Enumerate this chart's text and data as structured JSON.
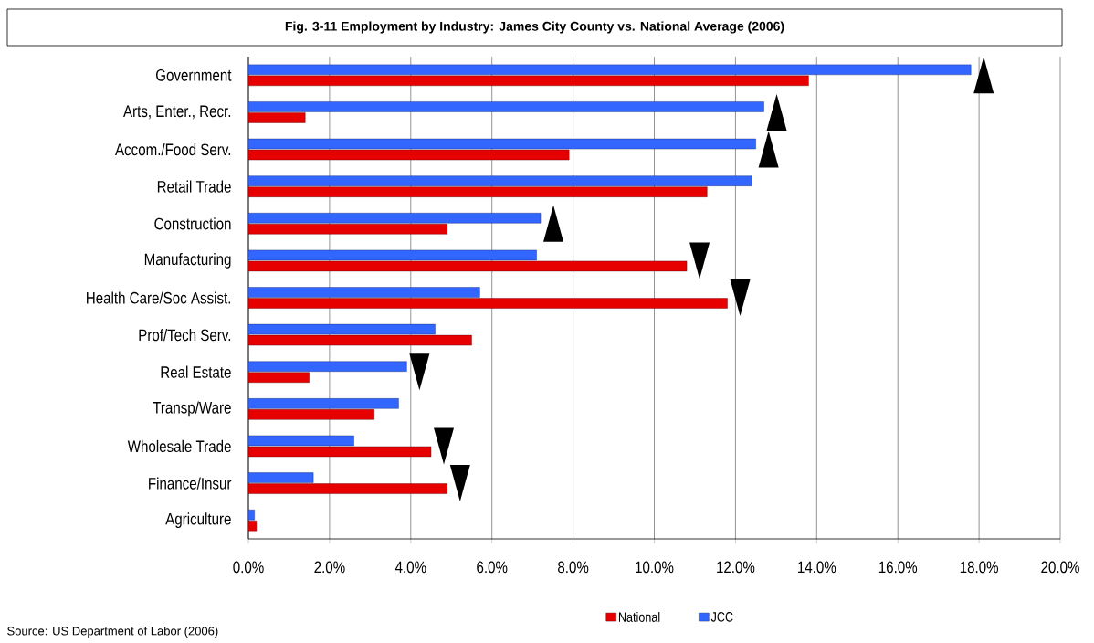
{
  "chart_data": {
    "type": "bar",
    "orientation": "horizontal",
    "title": "Fig. 3-11 Employment by Industry: James City County vs. National Average (2006)",
    "categories": [
      "Government",
      "Arts, Enter., Recr.",
      "Accom./Food Serv.",
      "Retail Trade",
      "Construction",
      "Manufacturing",
      "Health Care/Soc Assist.",
      "Prof/Tech Serv.",
      "Real Estate",
      "Transp/Ware",
      "Wholesale Trade",
      "Finance/Insur",
      "Agriculture"
    ],
    "series": [
      {
        "name": "National",
        "color": "#e60000",
        "values": [
          13.8,
          1.4,
          7.9,
          11.3,
          4.9,
          10.8,
          11.8,
          5.5,
          1.5,
          3.1,
          4.5,
          4.9,
          0.2
        ]
      },
      {
        "name": "JCC",
        "color": "#3366ff",
        "values": [
          17.8,
          12.7,
          12.5,
          12.4,
          7.2,
          7.1,
          5.7,
          4.6,
          3.9,
          3.7,
          2.6,
          1.6,
          0.15
        ]
      }
    ],
    "xlim": [
      0,
      20
    ],
    "xticks": [
      {
        "value": 0,
        "label": "0.0%"
      },
      {
        "value": 2,
        "label": "2.0%"
      },
      {
        "value": 4,
        "label": "4.0%"
      },
      {
        "value": 6,
        "label": "6.0%"
      },
      {
        "value": 8,
        "label": "8.0%"
      },
      {
        "value": 10,
        "label": "10.0%"
      },
      {
        "value": 12,
        "label": "12.0%"
      },
      {
        "value": 14,
        "label": "14.0%"
      },
      {
        "value": 16,
        "label": "16.0%"
      },
      {
        "value": 18,
        "label": "18.0%"
      },
      {
        "value": 20,
        "label": "20.0%"
      }
    ],
    "grid": "x",
    "legend": "bottom",
    "annotations": [
      "Source: US Department of Labor (2006)"
    ]
  }
}
